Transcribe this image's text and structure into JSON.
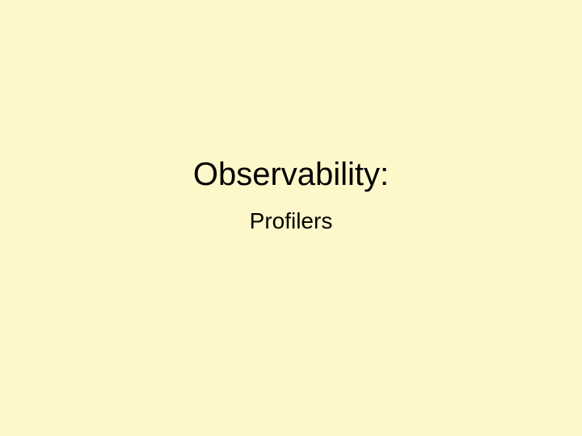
{
  "slide": {
    "title": "Observability:",
    "subtitle": "Profilers",
    "background_color": "#FDF7C9",
    "text_color": "#000000"
  }
}
